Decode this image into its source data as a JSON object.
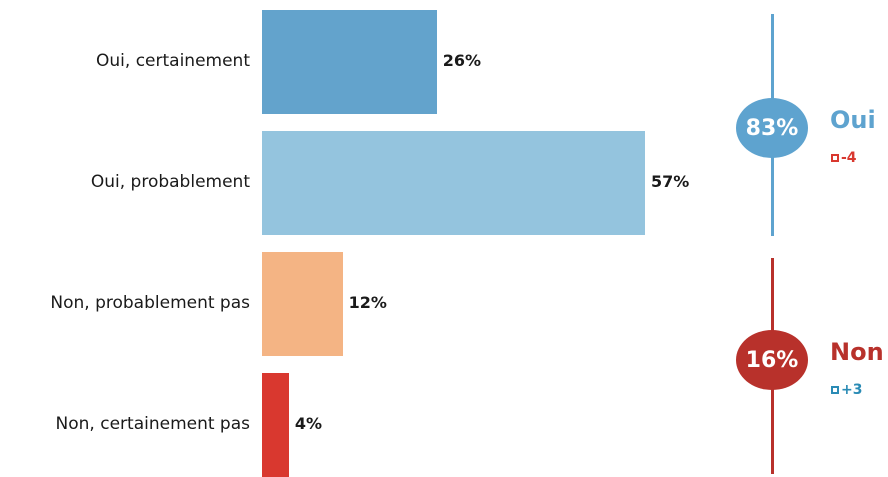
{
  "chart_data": {
    "type": "bar",
    "orientation": "horizontal",
    "categories": [
      "Oui, certainement",
      "Oui, probablement",
      "Non, probablement pas",
      "Non, certainement pas"
    ],
    "values": [
      26,
      57,
      12,
      4
    ],
    "value_labels": [
      "26%",
      "57%",
      "12%",
      "4%"
    ],
    "colors": [
      "#63a3cc",
      "#94c4de",
      "#f4b484",
      "#d9382f"
    ],
    "xlim": [
      0,
      57
    ],
    "grid": false,
    "groups": [
      {
        "label": "Oui",
        "total": "83%",
        "delta": "-4",
        "color": "#5ea3cf",
        "delta_color": "#d9382f"
      },
      {
        "label": "Non",
        "total": "16%",
        "delta": "+3",
        "color": "#b8312b",
        "delta_color": "#2a8bb5"
      }
    ]
  }
}
